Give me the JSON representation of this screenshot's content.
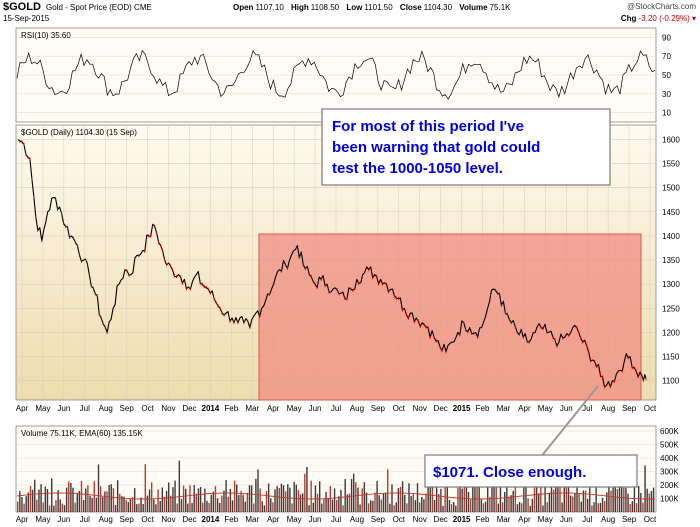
{
  "header": {
    "ticker": "$GOLD",
    "description": "Gold - Spot Price (EOD)",
    "exchange": "CME",
    "date": "15-Sep-2015",
    "open_label": "Open",
    "open": "1107.10",
    "high_label": "High",
    "high": "1108.50",
    "low_label": "Low",
    "low": "1101.50",
    "close_label": "Close",
    "close": "1104.30",
    "volume_label": "Volume",
    "volume": "75.1K",
    "change_label": "Chg",
    "change": "-3.20 (-0.29%)",
    "copyright": "@StockCharts.com"
  },
  "panels": {
    "rsi_label": "RSI(10) 35.60",
    "price_label": "$GOLD (Daily) 1104.30 (15 Sep)",
    "volume_label": "Volume 75.11K, EMA(60) 135.15K"
  },
  "annotations": {
    "box1": [
      "For most of this period I've",
      "been warning that gold could",
      "test the 1000-1050 level."
    ],
    "box2": "$1071. Close enough."
  },
  "colors": {
    "price_bg_top": "#fffaf0",
    "price_bg_bottom": "#efdcae",
    "highlight": "#f08c82",
    "callout_text": "#0000ee",
    "price_line": "#000000",
    "down_tick": "#cc0000"
  },
  "chart_data": {
    "type": "line",
    "title": "$GOLD (Daily) 1104.30 (15 Sep)",
    "ylim": [
      1060,
      1630
    ],
    "y_ticks": [
      1100,
      1150,
      1200,
      1250,
      1300,
      1350,
      1400,
      1450,
      1500,
      1550,
      1600
    ],
    "rsi_ticks": [
      10,
      30,
      50,
      70,
      90
    ],
    "volume_ticks": [
      "100K",
      "200K",
      "300K",
      "400K",
      "500K",
      "600K"
    ],
    "x_tick_labels": [
      "Apr",
      "May",
      "Jun",
      "Jul",
      "Aug",
      "Sep",
      "Oct",
      "Nov",
      "Dec",
      "2014",
      "Feb",
      "Mar",
      "Apr",
      "May",
      "Jun",
      "Jul",
      "Aug",
      "Sep",
      "Oct",
      "Nov",
      "Dec",
      "2015",
      "Feb",
      "Mar",
      "Apr",
      "May",
      "Jun",
      "Jul",
      "Aug",
      "Sep",
      "Oct"
    ],
    "series": [
      {
        "points": [
          [
            0,
            1600
          ],
          [
            3,
            1590
          ],
          [
            6,
            1560
          ],
          [
            9,
            1440
          ],
          [
            12,
            1390
          ],
          [
            15,
            1450
          ],
          [
            18,
            1480
          ],
          [
            21,
            1460
          ],
          [
            24,
            1420
          ],
          [
            27,
            1400
          ],
          [
            30,
            1380
          ],
          [
            33,
            1350
          ],
          [
            36,
            1320
          ],
          [
            39,
            1280
          ],
          [
            42,
            1230
          ],
          [
            45,
            1200
          ],
          [
            48,
            1250
          ],
          [
            51,
            1300
          ],
          [
            54,
            1330
          ],
          [
            57,
            1320
          ],
          [
            60,
            1360
          ],
          [
            63,
            1370
          ],
          [
            66,
            1400
          ],
          [
            69,
            1420
          ],
          [
            72,
            1380
          ],
          [
            75,
            1340
          ],
          [
            78,
            1330
          ],
          [
            81,
            1320
          ],
          [
            84,
            1310
          ],
          [
            87,
            1290
          ],
          [
            90,
            1320
          ],
          [
            93,
            1300
          ],
          [
            96,
            1290
          ],
          [
            99,
            1270
          ],
          [
            102,
            1250
          ],
          [
            105,
            1240
          ],
          [
            108,
            1230
          ],
          [
            111,
            1220
          ],
          [
            114,
            1220
          ],
          [
            117,
            1210
          ],
          [
            120,
            1240
          ],
          [
            123,
            1250
          ],
          [
            126,
            1280
          ],
          [
            129,
            1300
          ],
          [
            132,
            1330
          ],
          [
            135,
            1340
          ],
          [
            138,
            1360
          ],
          [
            141,
            1380
          ],
          [
            144,
            1340
          ],
          [
            147,
            1320
          ],
          [
            150,
            1300
          ],
          [
            153,
            1310
          ],
          [
            156,
            1300
          ],
          [
            159,
            1290
          ],
          [
            162,
            1280
          ],
          [
            165,
            1270
          ],
          [
            168,
            1290
          ],
          [
            171,
            1310
          ],
          [
            174,
            1320
          ],
          [
            177,
            1330
          ],
          [
            180,
            1320
          ],
          [
            183,
            1310
          ],
          [
            186,
            1300
          ],
          [
            189,
            1290
          ],
          [
            192,
            1270
          ],
          [
            195,
            1250
          ],
          [
            198,
            1240
          ],
          [
            201,
            1230
          ],
          [
            204,
            1220
          ],
          [
            207,
            1210
          ],
          [
            210,
            1190
          ],
          [
            213,
            1170
          ],
          [
            216,
            1160
          ],
          [
            219,
            1180
          ],
          [
            222,
            1200
          ],
          [
            225,
            1220
          ],
          [
            228,
            1210
          ],
          [
            231,
            1200
          ],
          [
            234,
            1210
          ],
          [
            237,
            1250
          ],
          [
            240,
            1290
          ],
          [
            243,
            1280
          ],
          [
            246,
            1240
          ],
          [
            249,
            1220
          ],
          [
            252,
            1200
          ],
          [
            255,
            1190
          ],
          [
            258,
            1180
          ],
          [
            261,
            1200
          ],
          [
            264,
            1210
          ],
          [
            267,
            1200
          ],
          [
            270,
            1190
          ],
          [
            273,
            1180
          ],
          [
            276,
            1190
          ],
          [
            279,
            1200
          ],
          [
            282,
            1210
          ],
          [
            285,
            1180
          ],
          [
            288,
            1160
          ],
          [
            291,
            1140
          ],
          [
            294,
            1110
          ],
          [
            297,
            1090
          ],
          [
            300,
            1100
          ],
          [
            303,
            1120
          ],
          [
            306,
            1140
          ],
          [
            309,
            1150
          ],
          [
            312,
            1120
          ],
          [
            315,
            1110
          ],
          [
            317,
            1104
          ]
        ]
      }
    ]
  }
}
